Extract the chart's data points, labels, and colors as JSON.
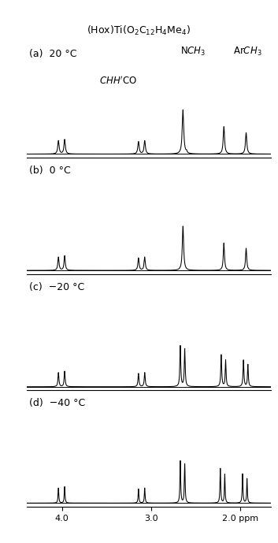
{
  "title": "(Hox)Ti(O$_2$C$_{12}$H$_4$Me$_4$)",
  "xmin": 4.4,
  "xmax": 1.65,
  "panels": [
    {
      "label": "(a)  20 °C",
      "temp": 20
    },
    {
      "label": "(b)  0 °C",
      "temp": 0
    },
    {
      "label": "(c)  −20 °C",
      "temp": -20
    },
    {
      "label": "(d)  −40 °C",
      "temp": -40
    }
  ],
  "background": "#ffffff",
  "line_color": "#000000",
  "panel_label_fontsize": 9,
  "annot_fontsize": 8.5,
  "tick_fontsize": 8
}
